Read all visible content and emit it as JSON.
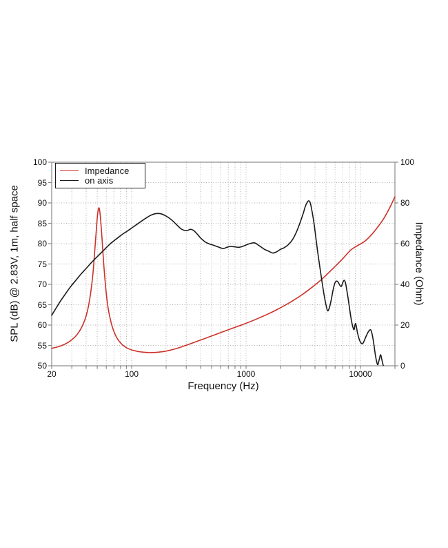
{
  "figure": {
    "background": "#ffffff",
    "grid_color": "#b0b0b0",
    "frame_color": "#8a8a8a"
  },
  "chart_data": {
    "type": "line",
    "title": "",
    "xlabel": "Frequency (Hz)",
    "ylabel_left": "SPL (dB) @ 2.83V, 1m, half space",
    "ylabel_right": "Impedance (Ohm)",
    "x_scale": "log",
    "xlim": [
      20,
      20000
    ],
    "ylim_left": [
      50,
      100
    ],
    "ylim_right": [
      0,
      100
    ],
    "x_ticks_labeled": [
      20,
      100,
      1000,
      10000
    ],
    "y_ticks_left": [
      50,
      55,
      60,
      65,
      70,
      75,
      80,
      85,
      90,
      95,
      100
    ],
    "y_ticks_right": [
      0,
      20,
      40,
      60,
      80,
      100
    ],
    "grid": "dotted",
    "legend_position": "top-left",
    "series": [
      {
        "name": "Impedance",
        "axis": "right",
        "unit": "Ohm",
        "color": "#cc3128",
        "points": [
          [
            20,
            8.6
          ],
          [
            22,
            9.1
          ],
          [
            24,
            9.8
          ],
          [
            26,
            10.6
          ],
          [
            28,
            11.6
          ],
          [
            30,
            12.8
          ],
          [
            32,
            14.2
          ],
          [
            34,
            16.0
          ],
          [
            36,
            18.2
          ],
          [
            38,
            21.0
          ],
          [
            40,
            24.5
          ],
          [
            42,
            29.5
          ],
          [
            44,
            36.5
          ],
          [
            46,
            46.0
          ],
          [
            47.5,
            56.0
          ],
          [
            49,
            66.0
          ],
          [
            50,
            72.5
          ],
          [
            51,
            76.5
          ],
          [
            51.8,
            77.6
          ],
          [
            52.6,
            76.0
          ],
          [
            53.5,
            72.0
          ],
          [
            55,
            63.0
          ],
          [
            56.5,
            53.0
          ],
          [
            58,
            44.5
          ],
          [
            60,
            35.5
          ],
          [
            62,
            29.0
          ],
          [
            65,
            23.0
          ],
          [
            68,
            18.8
          ],
          [
            72,
            15.2
          ],
          [
            76,
            12.8
          ],
          [
            81,
            10.9
          ],
          [
            87,
            9.4
          ],
          [
            93,
            8.5
          ],
          [
            100,
            7.8
          ],
          [
            108,
            7.3
          ],
          [
            117,
            6.9
          ],
          [
            127,
            6.7
          ],
          [
            138,
            6.5
          ],
          [
            150,
            6.5
          ],
          [
            163,
            6.6
          ],
          [
            178,
            6.8
          ],
          [
            195,
            7.1
          ],
          [
            215,
            7.6
          ],
          [
            240,
            8.3
          ],
          [
            270,
            9.2
          ],
          [
            300,
            10.1
          ],
          [
            340,
            11.2
          ],
          [
            390,
            12.4
          ],
          [
            450,
            13.7
          ],
          [
            520,
            15.0
          ],
          [
            600,
            16.3
          ],
          [
            700,
            17.7
          ],
          [
            810,
            19.0
          ],
          [
            940,
            20.3
          ],
          [
            1100,
            21.8
          ],
          [
            1300,
            23.5
          ],
          [
            1550,
            25.4
          ],
          [
            1850,
            27.5
          ],
          [
            2200,
            29.8
          ],
          [
            2600,
            32.2
          ],
          [
            3100,
            35.0
          ],
          [
            3700,
            38.2
          ],
          [
            4400,
            41.6
          ],
          [
            5200,
            45.4
          ],
          [
            6100,
            49.2
          ],
          [
            7100,
            53.0
          ],
          [
            8200,
            56.8
          ],
          [
            9400,
            59.0
          ],
          [
            10800,
            61.0
          ],
          [
            12300,
            64.0
          ],
          [
            14000,
            67.8
          ],
          [
            16000,
            72.4
          ],
          [
            18000,
            77.6
          ],
          [
            20000,
            83.0
          ]
        ]
      },
      {
        "name": "on axis",
        "axis": "left",
        "unit": "dB",
        "color": "#1a1a1a",
        "points": [
          [
            20,
            62.4
          ],
          [
            22,
            64.3
          ],
          [
            24,
            66.0
          ],
          [
            26,
            67.4
          ],
          [
            28,
            68.7
          ],
          [
            30,
            69.8
          ],
          [
            33,
            71.2
          ],
          [
            36,
            72.5
          ],
          [
            40,
            73.9
          ],
          [
            44,
            75.2
          ],
          [
            48,
            76.3
          ],
          [
            53,
            77.5
          ],
          [
            58,
            78.6
          ],
          [
            64,
            79.8
          ],
          [
            70,
            80.7
          ],
          [
            77,
            81.6
          ],
          [
            85,
            82.5
          ],
          [
            93,
            83.2
          ],
          [
            102,
            84.0
          ],
          [
            112,
            84.8
          ],
          [
            123,
            85.6
          ],
          [
            134,
            86.3
          ],
          [
            145,
            86.9
          ],
          [
            158,
            87.3
          ],
          [
            170,
            87.4
          ],
          [
            182,
            87.3
          ],
          [
            196,
            86.9
          ],
          [
            210,
            86.4
          ],
          [
            228,
            85.6
          ],
          [
            248,
            84.6
          ],
          [
            268,
            83.7
          ],
          [
            285,
            83.3
          ],
          [
            305,
            83.2
          ],
          [
            325,
            83.5
          ],
          [
            345,
            83.3
          ],
          [
            370,
            82.5
          ],
          [
            400,
            81.4
          ],
          [
            440,
            80.4
          ],
          [
            480,
            79.9
          ],
          [
            520,
            79.6
          ],
          [
            570,
            79.2
          ],
          [
            630,
            78.8
          ],
          [
            680,
            79.1
          ],
          [
            730,
            79.3
          ],
          [
            800,
            79.2
          ],
          [
            870,
            79.1
          ],
          [
            950,
            79.4
          ],
          [
            1050,
            79.9
          ],
          [
            1180,
            80.2
          ],
          [
            1300,
            79.5
          ],
          [
            1450,
            78.6
          ],
          [
            1560,
            78.2
          ],
          [
            1710,
            77.7
          ],
          [
            1850,
            78.0
          ],
          [
            2000,
            78.6
          ],
          [
            2150,
            79.0
          ],
          [
            2350,
            79.8
          ],
          [
            2550,
            81.0
          ],
          [
            2750,
            82.8
          ],
          [
            2950,
            85.0
          ],
          [
            3150,
            87.3
          ],
          [
            3300,
            89.2
          ],
          [
            3450,
            90.3
          ],
          [
            3550,
            90.5
          ],
          [
            3650,
            89.9
          ],
          [
            3750,
            88.3
          ],
          [
            3900,
            85.5
          ],
          [
            4050,
            82.0
          ],
          [
            4200,
            78.5
          ],
          [
            4400,
            74.5
          ],
          [
            4600,
            70.8
          ],
          [
            4800,
            67.5
          ],
          [
            5000,
            64.9
          ],
          [
            5170,
            63.5
          ],
          [
            5350,
            64.3
          ],
          [
            5550,
            66.2
          ],
          [
            5750,
            68.5
          ],
          [
            5950,
            70.2
          ],
          [
            6150,
            70.8
          ],
          [
            6350,
            70.6
          ],
          [
            6600,
            69.8
          ],
          [
            6800,
            69.5
          ],
          [
            7000,
            70.4
          ],
          [
            7200,
            71.0
          ],
          [
            7400,
            70.3
          ],
          [
            7600,
            68.5
          ],
          [
            7850,
            66.0
          ],
          [
            8100,
            63.3
          ],
          [
            8350,
            61.0
          ],
          [
            8600,
            59.4
          ],
          [
            8800,
            58.9
          ],
          [
            9000,
            60.3
          ],
          [
            9150,
            60.0
          ],
          [
            9400,
            58.2
          ],
          [
            9700,
            56.7
          ],
          [
            10000,
            55.8
          ],
          [
            10400,
            55.4
          ],
          [
            10800,
            56.2
          ],
          [
            11300,
            57.5
          ],
          [
            11800,
            58.5
          ],
          [
            12300,
            58.8
          ],
          [
            12700,
            57.5
          ],
          [
            13100,
            55.2
          ],
          [
            13500,
            52.6
          ],
          [
            13900,
            50.8
          ],
          [
            14200,
            50.3
          ],
          [
            14600,
            51.6
          ],
          [
            15000,
            52.7
          ],
          [
            15400,
            51.4
          ],
          [
            15800,
            50.1
          ]
        ]
      }
    ]
  }
}
